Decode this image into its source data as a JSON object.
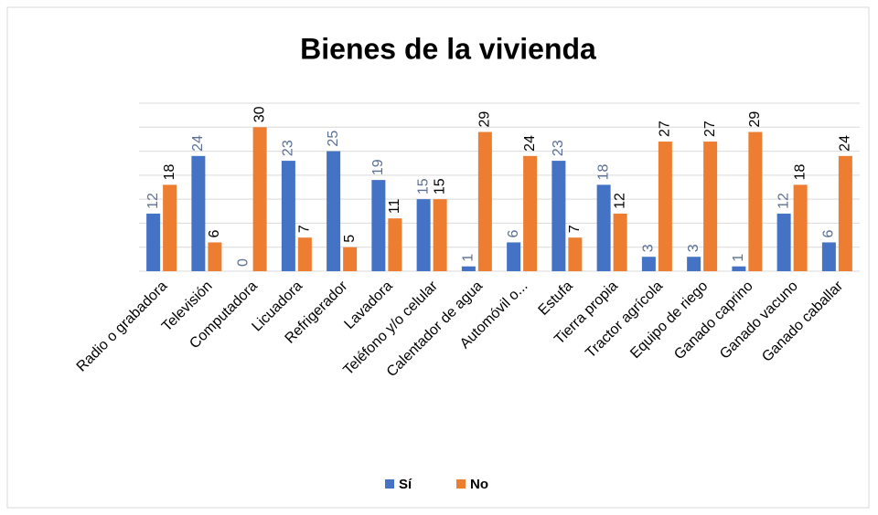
{
  "chart_data": {
    "type": "bar",
    "title": "Bienes de la vivienda",
    "categories": [
      "Radio o grabadora",
      "Televisión",
      "Computadora",
      "Licuadora",
      "Refrigerador",
      "Lavadora",
      "Teléfono y/o celular",
      "Calentador de agua",
      "Automóvil o...",
      "Estufa",
      "Tierra propia",
      "Tractor agrícola",
      "Equipo de riego",
      "Ganado caprino",
      "Ganado vacuno",
      "Ganado caballar"
    ],
    "series": [
      {
        "name": "Sí",
        "color": "#4472c4",
        "values": [
          12,
          24,
          0,
          23,
          25,
          19,
          15,
          1,
          6,
          23,
          18,
          3,
          3,
          1,
          12,
          6
        ]
      },
      {
        "name": "No",
        "color": "#ed7d31",
        "values": [
          18,
          6,
          30,
          7,
          5,
          11,
          15,
          29,
          24,
          7,
          12,
          27,
          27,
          29,
          18,
          24
        ]
      }
    ],
    "ylim": [
      0,
      35
    ],
    "yticks": [
      0,
      5,
      10,
      15,
      20,
      25,
      30,
      35
    ],
    "grid": true,
    "legend": "bottom"
  }
}
